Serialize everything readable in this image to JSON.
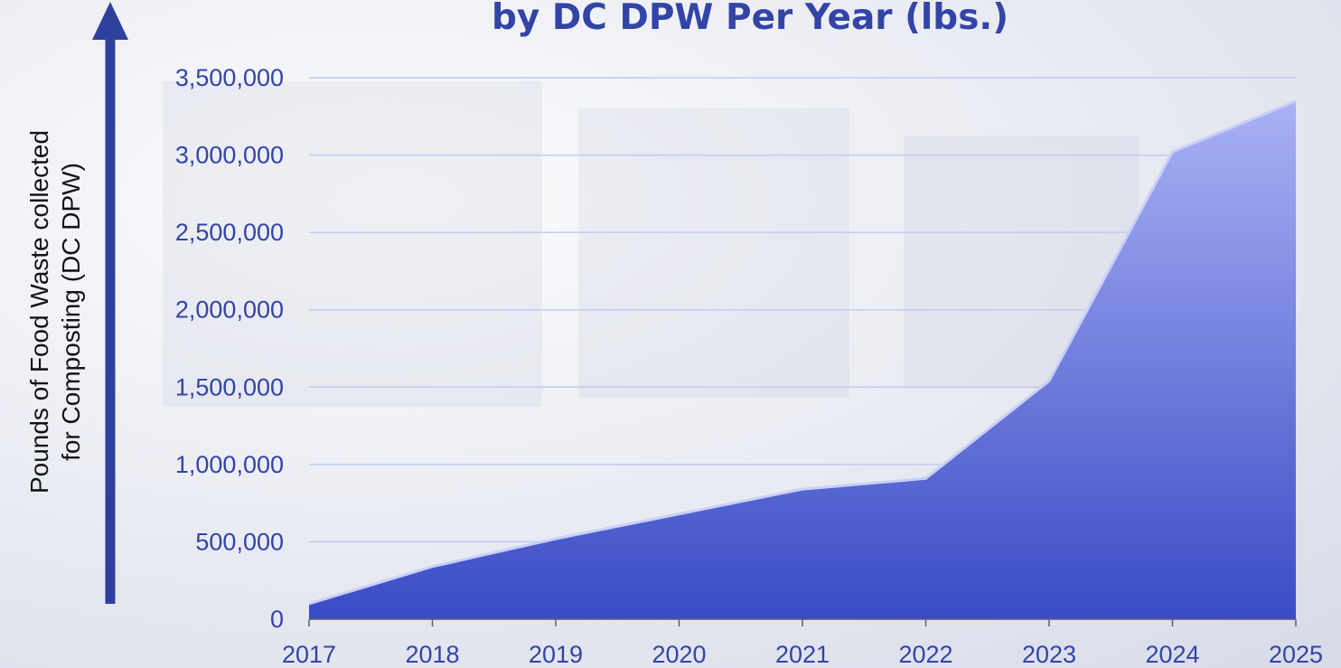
{
  "chart_data": {
    "type": "area",
    "title": "by DC DPW Per Year (lbs.)",
    "ylabel_lines": [
      "Pounds of Food Waste collected",
      "for Composting (DC DPW)"
    ],
    "xlabel": "",
    "categories": [
      "2017",
      "2018",
      "2019",
      "2020",
      "2021",
      "2022",
      "2023",
      "2024",
      "2025"
    ],
    "values": [
      100000,
      340000,
      520000,
      680000,
      840000,
      910000,
      1540000,
      3020000,
      3350000
    ],
    "ylim": [
      0,
      3500000
    ],
    "yticks": [
      0,
      500000,
      1000000,
      1500000,
      2000000,
      2500000,
      3000000,
      3500000
    ],
    "ytick_labels": [
      "0",
      "500,000",
      "1,000,000",
      "1,500,000",
      "2,000,000",
      "2,500,000",
      "3,000,000",
      "3,500,000"
    ],
    "grid": true,
    "legend": "none",
    "colors": {
      "area_top": "#a9b2f4",
      "area_bottom": "#3a4bc6",
      "title": "#3344a7",
      "axis_arrow": "#2f3f9c",
      "tick_labels": "#3344a7",
      "gridline": "#c3c9f2"
    }
  }
}
